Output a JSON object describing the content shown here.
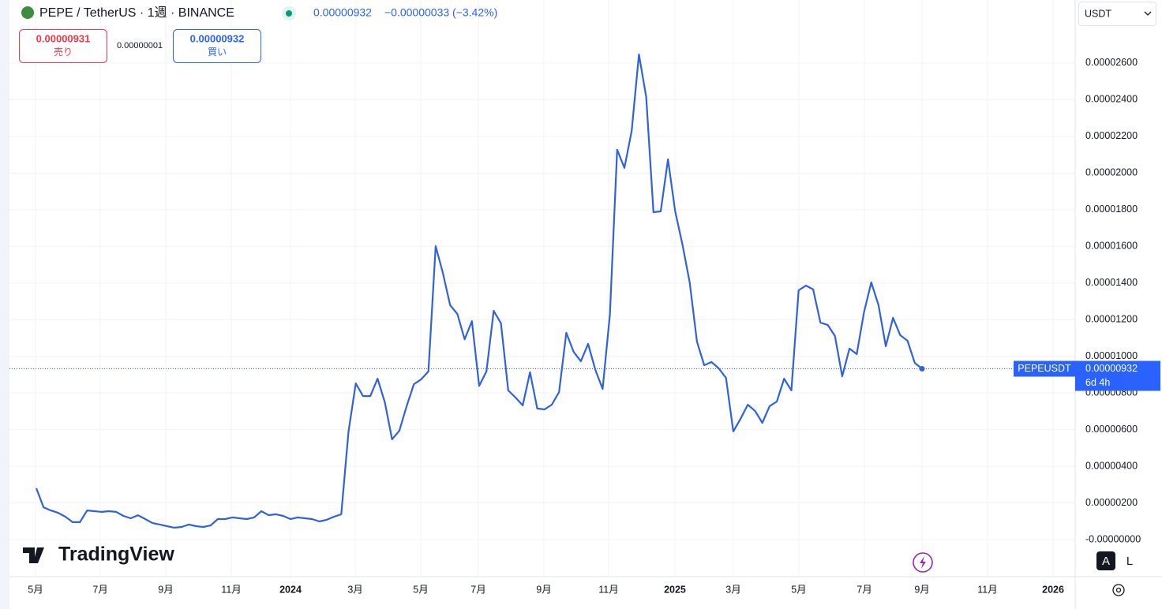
{
  "header": {
    "symbol": "PEPE / TetherUS · 1週 · BINANCE",
    "price": "0.00000932",
    "change": "−0.00000033 (−3.42%)",
    "sell_price": "0.00000931",
    "sell_label": "売り",
    "spread": "0.00000001",
    "buy_price": "0.00000932",
    "buy_label": "買い",
    "currency": "USDT",
    "logo": "TradingView",
    "auto_button": "A",
    "log_button": "L"
  },
  "price_tag": {
    "symbol": "PEPEUSDT",
    "price": "0.00000932",
    "countdown": "6d 4h"
  },
  "chart_data": {
    "type": "line",
    "series": [
      {
        "name": "PEPEUSDT",
        "color": "#2e62e0",
        "values": [
          2.8e-06,
          1.76e-06,
          1.59e-06,
          1.46e-06,
          1.25e-06,
          9.5e-07,
          9.5e-07,
          1.59e-06,
          1.55e-06,
          1.51e-06,
          1.55e-06,
          1.51e-06,
          1.29e-06,
          1.16e-06,
          1.33e-06,
          1.12e-06,
          9e-07,
          8.2e-07,
          7.3e-07,
          6.5e-07,
          6.9e-07,
          8.2e-07,
          7.3e-07,
          6.9e-07,
          7.7e-07,
          1.12e-06,
          1.12e-06,
          1.21e-06,
          1.16e-06,
          1.12e-06,
          1.21e-06,
          1.55e-06,
          1.33e-06,
          1.38e-06,
          1.29e-06,
          1.12e-06,
          1.21e-06,
          1.16e-06,
          1.12e-06,
          9.9e-07,
          1.08e-06,
          1.25e-06,
          1.38e-06,
          5.9e-06,
          8.52e-06,
          7.83e-06,
          7.83e-06,
          8.78e-06,
          7.49e-06,
          5.47e-06,
          5.94e-06,
          7.28e-06,
          8.48e-06,
          8.74e-06,
          9.17e-06,
          1.601e-05,
          1.455e-05,
          1.279e-05,
          1.231e-05,
          1.093e-05,
          1.192e-05,
          8.39e-06,
          9.17e-06,
          1.248e-05,
          1.18e-05,
          8.14e-06,
          7.75e-06,
          7.32e-06,
          9.13e-06,
          7.15e-06,
          7.1e-06,
          7.36e-06,
          8.05e-06,
          1.128e-05,
          1.025e-05,
          9.73e-06,
          1.068e-05,
          9.26e-06,
          8.22e-06,
          1.227e-05,
          2.127e-05,
          2.028e-05,
          2.23e-05,
          2.647e-05,
          2.415e-05,
          1.786e-05,
          1.791e-05,
          2.075e-05,
          1.791e-05,
          1.61e-05,
          1.403e-05,
          1.08e-05,
          9.51e-06,
          9.69e-06,
          9.34e-06,
          8.82e-06,
          5.9e-06,
          6.59e-06,
          7.36e-06,
          7.02e-06,
          6.37e-06,
          7.28e-06,
          7.53e-06,
          8.78e-06,
          8.14e-06,
          1.36e-05,
          1.386e-05,
          1.365e-05,
          1.184e-05,
          1.171e-05,
          1.111e-05,
          8.91e-06,
          1.042e-05,
          1.012e-05,
          1.24e-05,
          1.403e-05,
          1.279e-05,
          1.055e-05,
          1.21e-05,
          1.115e-05,
          1.085e-05,
          9.64e-06,
          9.32e-06
        ]
      }
    ],
    "xlim": [
      -3.7,
      143.09
    ],
    "xticks": [
      {
        "value": -0.11,
        "label": "5月"
      },
      {
        "value": 8.81,
        "label": "7月"
      },
      {
        "value": 17.83,
        "label": "9月"
      },
      {
        "value": 26.86,
        "label": "11月"
      },
      {
        "value": 35.01,
        "label": "2024"
      },
      {
        "value": 43.93,
        "label": "3月"
      },
      {
        "value": 52.95,
        "label": "5月"
      },
      {
        "value": 60.89,
        "label": "7月"
      },
      {
        "value": 69.91,
        "label": "9月"
      },
      {
        "value": 78.83,
        "label": "11月"
      },
      {
        "value": 87.96,
        "label": "2025"
      },
      {
        "value": 96.01,
        "label": "3月"
      },
      {
        "value": 105.03,
        "label": "5月"
      },
      {
        "value": 114.06,
        "label": "7月"
      },
      {
        "value": 122.0,
        "label": "9月"
      },
      {
        "value": 131.02,
        "label": "11月"
      },
      {
        "value": 140.05,
        "label": "2026"
      }
    ],
    "ylim": [
      -1.98e-06,
      2.944e-05
    ],
    "yticks": [
      {
        "value": 0,
        "label": "-0.00000000"
      },
      {
        "value": 2e-06,
        "label": "0.00000200"
      },
      {
        "value": 4e-06,
        "label": "0.00000400"
      },
      {
        "value": 6e-06,
        "label": "0.00000600"
      },
      {
        "value": 8e-06,
        "label": "0.00000800"
      },
      {
        "value": 1e-05,
        "label": "0.00001000"
      },
      {
        "value": 1.2e-05,
        "label": "0.00001200"
      },
      {
        "value": 1.4e-05,
        "label": "0.00001400"
      },
      {
        "value": 1.6e-05,
        "label": "0.00001600"
      },
      {
        "value": 1.8e-05,
        "label": "0.00001800"
      },
      {
        "value": 2e-05,
        "label": "0.00002000"
      },
      {
        "value": 2.2e-05,
        "label": "0.00002200"
      },
      {
        "value": 2.4e-05,
        "label": "0.00002400"
      },
      {
        "value": 2.6e-05,
        "label": "0.00002600"
      }
    ],
    "grid": true
  }
}
